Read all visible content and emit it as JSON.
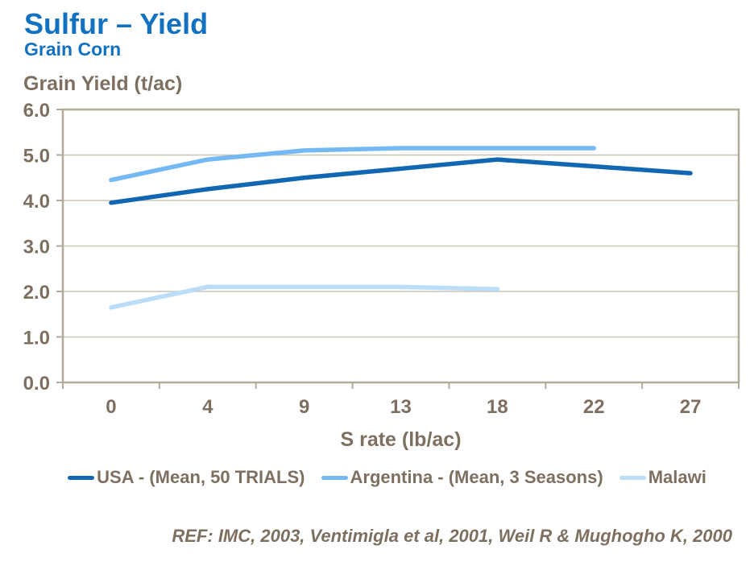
{
  "header": {
    "title": "Sulfur – Yield",
    "subtitle": "Grain Corn"
  },
  "footer": {
    "reference": "REF: IMC, 2003, Ventimigla et al, 2001, Weil R & Mughogho K, 2000"
  },
  "colors": {
    "title_blue": "#1371C1",
    "axis_text": "#7D7060",
    "gridline": "#CCC4B6",
    "plot_border": "#B3AA9C",
    "background": "#FFFFFF"
  },
  "chart_data": {
    "type": "line",
    "title": "Sulfur – Yield",
    "subtitle": "Grain Corn",
    "xlabel": "S rate (lb/ac)",
    "ylabel": "Grain Yield (t/ac)",
    "categories": [
      "0",
      "4",
      "9",
      "13",
      "18",
      "22",
      "27"
    ],
    "ylim": [
      0,
      6
    ],
    "ytick_step": 1,
    "ytick_labels": [
      "0.0",
      "1.0",
      "2.0",
      "3.0",
      "4.0",
      "5.0",
      "6.0"
    ],
    "grid": "horizontal",
    "legend_position": "bottom",
    "series": [
      {
        "name": "USA - (Mean, 50 TRIALS)",
        "color": "#1267B2",
        "values": [
          3.95,
          4.25,
          4.5,
          4.7,
          4.9,
          4.75,
          4.6
        ]
      },
      {
        "name": "Argentina - (Mean, 3 Seasons)",
        "color": "#74B9F3",
        "values": [
          4.45,
          4.9,
          5.1,
          5.15,
          5.15,
          5.15,
          null
        ]
      },
      {
        "name": "Malawi",
        "color": "#BCDDF8",
        "values": [
          1.65,
          2.1,
          2.1,
          2.1,
          2.05,
          null,
          null
        ]
      }
    ]
  }
}
